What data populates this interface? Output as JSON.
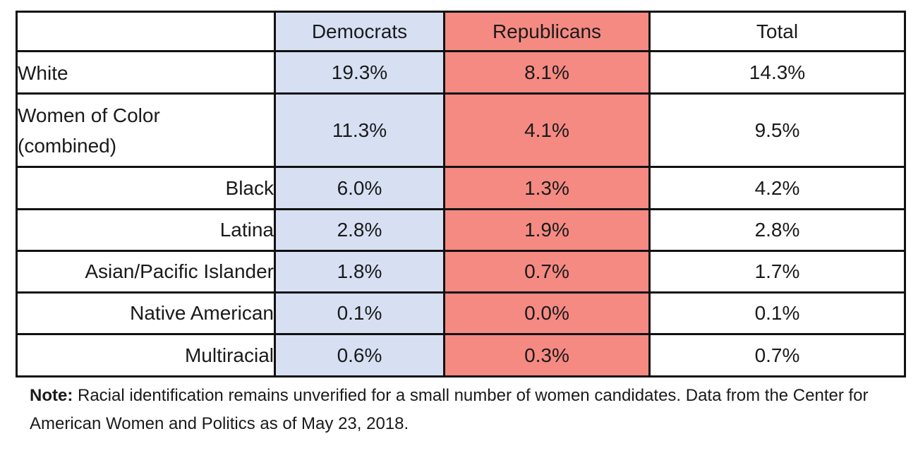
{
  "table": {
    "headers": {
      "label": "",
      "democrats": "Democrats",
      "republicans": "Republicans",
      "total": "Total"
    },
    "rows": [
      {
        "label": "White",
        "democrats": "19.3%",
        "republicans": "8.1%",
        "total": "14.3%"
      },
      {
        "label_line1": "Women of Color",
        "label_line2": "(combined)",
        "democrats": "11.3%",
        "republicans": "4.1%",
        "total": "9.5%"
      },
      {
        "label": "Black",
        "democrats": "6.0%",
        "republicans": "1.3%",
        "total": "4.2%"
      },
      {
        "label": "Latina",
        "democrats": "2.8%",
        "republicans": "1.9%",
        "total": "2.8%"
      },
      {
        "label": "Asian/Pacific Islander",
        "democrats": "1.8%",
        "republicans": "0.7%",
        "total": "1.7%"
      },
      {
        "label": "Native American",
        "democrats": "0.1%",
        "republicans": "0.0%",
        "total": "0.1%"
      },
      {
        "label": "Multiracial",
        "democrats": "0.6%",
        "republicans": "0.3%",
        "total": "0.7%"
      }
    ],
    "colors": {
      "democrats_fill": "#d7e0f3",
      "republicans_fill": "#f58a83",
      "border": "#111111"
    }
  },
  "note": {
    "label": "Note:",
    "text": " Racial identification remains unverified for a small number of women candidates. Data from the Center for American Women and Politics as of May 23, 2018."
  },
  "chart_data": {
    "type": "table",
    "columns": [
      "",
      "Democrats",
      "Republicans",
      "Total"
    ],
    "rows": [
      [
        "White",
        19.3,
        8.1,
        14.3
      ],
      [
        "Women of Color (combined)",
        11.3,
        4.1,
        9.5
      ],
      [
        "Black",
        6.0,
        1.3,
        4.2
      ],
      [
        "Latina",
        2.8,
        1.9,
        2.8
      ],
      [
        "Asian/Pacific Islander",
        1.8,
        0.7,
        1.7
      ],
      [
        "Native American",
        0.1,
        0.0,
        0.1
      ],
      [
        "Multiracial",
        0.6,
        0.3,
        0.7
      ]
    ],
    "unit": "%"
  }
}
